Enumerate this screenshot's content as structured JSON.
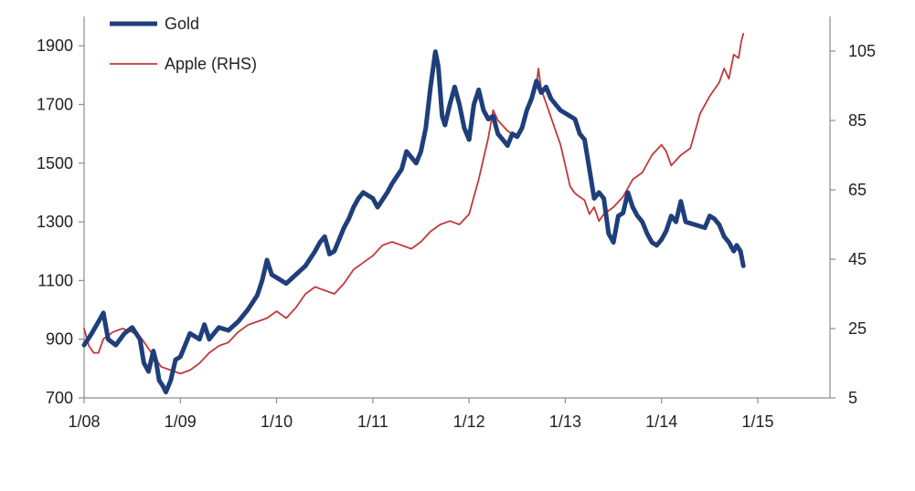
{
  "chart_data": {
    "type": "line",
    "title": "",
    "xlabel": "",
    "ylabel": "",
    "x_ticks": [
      "1/08",
      "1/09",
      "1/10",
      "1/11",
      "1/12",
      "1/13",
      "1/14",
      "1/15"
    ],
    "xlim": [
      2008.0,
      2015.75
    ],
    "y_left": {
      "lim": [
        700,
        2000
      ],
      "ticks": [
        700,
        900,
        1100,
        1300,
        1500,
        1700,
        1900
      ]
    },
    "y_right": {
      "lim": [
        5,
        115
      ],
      "ticks": [
        5,
        25,
        45,
        65,
        85,
        105
      ]
    },
    "legend_position": "top-left",
    "series": [
      {
        "name": "Gold",
        "axis": "left",
        "color": "#1f3f7a",
        "points": [
          [
            2008.0,
            880
          ],
          [
            2008.08,
            920
          ],
          [
            2008.15,
            960
          ],
          [
            2008.2,
            990
          ],
          [
            2008.25,
            900
          ],
          [
            2008.33,
            880
          ],
          [
            2008.42,
            920
          ],
          [
            2008.5,
            940
          ],
          [
            2008.58,
            900
          ],
          [
            2008.62,
            820
          ],
          [
            2008.67,
            790
          ],
          [
            2008.72,
            860
          ],
          [
            2008.75,
            820
          ],
          [
            2008.78,
            760
          ],
          [
            2008.82,
            740
          ],
          [
            2008.85,
            720
          ],
          [
            2008.9,
            760
          ],
          [
            2008.95,
            830
          ],
          [
            2009.0,
            840
          ],
          [
            2009.1,
            920
          ],
          [
            2009.2,
            900
          ],
          [
            2009.25,
            950
          ],
          [
            2009.3,
            900
          ],
          [
            2009.4,
            940
          ],
          [
            2009.5,
            930
          ],
          [
            2009.6,
            960
          ],
          [
            2009.7,
            1000
          ],
          [
            2009.8,
            1050
          ],
          [
            2009.85,
            1100
          ],
          [
            2009.9,
            1170
          ],
          [
            2009.95,
            1120
          ],
          [
            2010.0,
            1110
          ],
          [
            2010.1,
            1090
          ],
          [
            2010.2,
            1120
          ],
          [
            2010.3,
            1150
          ],
          [
            2010.4,
            1200
          ],
          [
            2010.45,
            1230
          ],
          [
            2010.5,
            1250
          ],
          [
            2010.55,
            1190
          ],
          [
            2010.6,
            1200
          ],
          [
            2010.7,
            1280
          ],
          [
            2010.75,
            1310
          ],
          [
            2010.8,
            1350
          ],
          [
            2010.85,
            1380
          ],
          [
            2010.9,
            1400
          ],
          [
            2011.0,
            1380
          ],
          [
            2011.05,
            1350
          ],
          [
            2011.15,
            1400
          ],
          [
            2011.2,
            1430
          ],
          [
            2011.3,
            1480
          ],
          [
            2011.35,
            1540
          ],
          [
            2011.4,
            1520
          ],
          [
            2011.45,
            1500
          ],
          [
            2011.5,
            1540
          ],
          [
            2011.55,
            1620
          ],
          [
            2011.6,
            1760
          ],
          [
            2011.65,
            1880
          ],
          [
            2011.68,
            1830
          ],
          [
            2011.72,
            1660
          ],
          [
            2011.75,
            1630
          ],
          [
            2011.8,
            1700
          ],
          [
            2011.85,
            1760
          ],
          [
            2011.9,
            1700
          ],
          [
            2011.95,
            1620
          ],
          [
            2012.0,
            1580
          ],
          [
            2012.05,
            1700
          ],
          [
            2012.1,
            1750
          ],
          [
            2012.15,
            1680
          ],
          [
            2012.2,
            1650
          ],
          [
            2012.25,
            1660
          ],
          [
            2012.3,
            1600
          ],
          [
            2012.35,
            1580
          ],
          [
            2012.4,
            1560
          ],
          [
            2012.45,
            1600
          ],
          [
            2012.5,
            1590
          ],
          [
            2012.55,
            1620
          ],
          [
            2012.6,
            1680
          ],
          [
            2012.65,
            1720
          ],
          [
            2012.7,
            1780
          ],
          [
            2012.75,
            1740
          ],
          [
            2012.8,
            1760
          ],
          [
            2012.85,
            1720
          ],
          [
            2012.9,
            1700
          ],
          [
            2012.95,
            1680
          ],
          [
            2013.0,
            1670
          ],
          [
            2013.05,
            1660
          ],
          [
            2013.1,
            1650
          ],
          [
            2013.15,
            1600
          ],
          [
            2013.2,
            1580
          ],
          [
            2013.25,
            1480
          ],
          [
            2013.3,
            1380
          ],
          [
            2013.35,
            1400
          ],
          [
            2013.4,
            1380
          ],
          [
            2013.45,
            1260
          ],
          [
            2013.5,
            1230
          ],
          [
            2013.55,
            1320
          ],
          [
            2013.6,
            1330
          ],
          [
            2013.65,
            1400
          ],
          [
            2013.7,
            1350
          ],
          [
            2013.75,
            1320
          ],
          [
            2013.8,
            1300
          ],
          [
            2013.85,
            1260
          ],
          [
            2013.9,
            1230
          ],
          [
            2013.95,
            1220
          ],
          [
            2014.0,
            1240
          ],
          [
            2014.05,
            1270
          ],
          [
            2014.1,
            1320
          ],
          [
            2014.15,
            1300
          ],
          [
            2014.2,
            1370
          ],
          [
            2014.25,
            1300
          ],
          [
            2014.35,
            1290
          ],
          [
            2014.45,
            1280
          ],
          [
            2014.5,
            1320
          ],
          [
            2014.55,
            1310
          ],
          [
            2014.6,
            1290
          ],
          [
            2014.65,
            1250
          ],
          [
            2014.7,
            1230
          ],
          [
            2014.75,
            1200
          ],
          [
            2014.78,
            1220
          ],
          [
            2014.82,
            1200
          ],
          [
            2014.85,
            1150
          ]
        ]
      },
      {
        "name": "Apple (RHS)",
        "axis": "right",
        "color": "#c0393b",
        "points": [
          [
            2008.0,
            25
          ],
          [
            2008.05,
            20
          ],
          [
            2008.1,
            18
          ],
          [
            2008.15,
            18
          ],
          [
            2008.2,
            22
          ],
          [
            2008.3,
            24
          ],
          [
            2008.4,
            25
          ],
          [
            2008.5,
            24
          ],
          [
            2008.6,
            22
          ],
          [
            2008.7,
            18
          ],
          [
            2008.8,
            14
          ],
          [
            2008.9,
            13
          ],
          [
            2009.0,
            12
          ],
          [
            2009.1,
            13
          ],
          [
            2009.2,
            15
          ],
          [
            2009.3,
            18
          ],
          [
            2009.4,
            20
          ],
          [
            2009.5,
            21
          ],
          [
            2009.6,
            24
          ],
          [
            2009.7,
            26
          ],
          [
            2009.8,
            27
          ],
          [
            2009.9,
            28
          ],
          [
            2010.0,
            30
          ],
          [
            2010.1,
            28
          ],
          [
            2010.2,
            31
          ],
          [
            2010.3,
            35
          ],
          [
            2010.4,
            37
          ],
          [
            2010.5,
            36
          ],
          [
            2010.6,
            35
          ],
          [
            2010.7,
            38
          ],
          [
            2010.8,
            42
          ],
          [
            2010.9,
            44
          ],
          [
            2011.0,
            46
          ],
          [
            2011.1,
            49
          ],
          [
            2011.2,
            50
          ],
          [
            2011.3,
            49
          ],
          [
            2011.4,
            48
          ],
          [
            2011.5,
            50
          ],
          [
            2011.6,
            53
          ],
          [
            2011.7,
            55
          ],
          [
            2011.8,
            56
          ],
          [
            2011.9,
            55
          ],
          [
            2012.0,
            58
          ],
          [
            2012.1,
            68
          ],
          [
            2012.2,
            80
          ],
          [
            2012.25,
            88
          ],
          [
            2012.3,
            85
          ],
          [
            2012.4,
            82
          ],
          [
            2012.5,
            80
          ],
          [
            2012.6,
            88
          ],
          [
            2012.7,
            95
          ],
          [
            2012.72,
            100
          ],
          [
            2012.75,
            94
          ],
          [
            2012.8,
            90
          ],
          [
            2012.85,
            86
          ],
          [
            2012.9,
            82
          ],
          [
            2012.95,
            78
          ],
          [
            2013.0,
            72
          ],
          [
            2013.05,
            66
          ],
          [
            2013.1,
            64
          ],
          [
            2013.15,
            63
          ],
          [
            2013.2,
            62
          ],
          [
            2013.25,
            58
          ],
          [
            2013.3,
            60
          ],
          [
            2013.35,
            56
          ],
          [
            2013.4,
            58
          ],
          [
            2013.5,
            60
          ],
          [
            2013.6,
            63
          ],
          [
            2013.7,
            68
          ],
          [
            2013.8,
            70
          ],
          [
            2013.9,
            75
          ],
          [
            2014.0,
            78
          ],
          [
            2014.05,
            76
          ],
          [
            2014.1,
            72
          ],
          [
            2014.2,
            75
          ],
          [
            2014.3,
            77
          ],
          [
            2014.35,
            82
          ],
          [
            2014.4,
            87
          ],
          [
            2014.5,
            92
          ],
          [
            2014.6,
            96
          ],
          [
            2014.65,
            100
          ],
          [
            2014.7,
            97
          ],
          [
            2014.75,
            104
          ],
          [
            2014.8,
            103
          ],
          [
            2014.83,
            108
          ],
          [
            2014.85,
            110
          ]
        ]
      }
    ]
  }
}
